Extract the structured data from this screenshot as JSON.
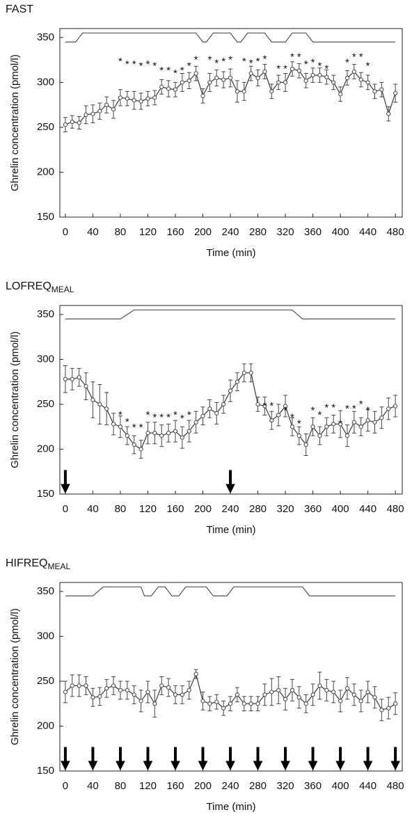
{
  "chart_data": [
    {
      "type": "line",
      "title": "FAST",
      "ylabel": "Ghrelin concentration (pmol/l)",
      "xlabel": "Time (min)",
      "xlim": [
        -8,
        490
      ],
      "ylim": [
        150,
        360
      ],
      "xticks": [
        0,
        40,
        80,
        120,
        160,
        200,
        240,
        280,
        320,
        360,
        400,
        440,
        480
      ],
      "yticks": [
        150,
        200,
        250,
        300,
        350
      ],
      "color": "#444",
      "x": [
        0,
        10,
        20,
        30,
        40,
        50,
        60,
        70,
        80,
        90,
        100,
        110,
        120,
        130,
        140,
        150,
        160,
        170,
        180,
        190,
        200,
        210,
        220,
        230,
        240,
        250,
        260,
        270,
        280,
        290,
        300,
        310,
        320,
        330,
        340,
        350,
        360,
        370,
        380,
        390,
        400,
        410,
        420,
        430,
        440,
        450,
        460,
        470,
        480
      ],
      "values": [
        253,
        256,
        255,
        264,
        265,
        268,
        275,
        270,
        283,
        282,
        280,
        279,
        282,
        283,
        295,
        293,
        292,
        300,
        302,
        310,
        285,
        300,
        305,
        303,
        305,
        290,
        290,
        310,
        305,
        312,
        290,
        300,
        300,
        315,
        313,
        302,
        308,
        308,
        306,
        300,
        287,
        305,
        312,
        303,
        300,
        290,
        292,
        265,
        288
      ],
      "errors": [
        8,
        7,
        7,
        10,
        10,
        9,
        9,
        10,
        9,
        8,
        10,
        9,
        8,
        8,
        8,
        9,
        8,
        10,
        9,
        8,
        8,
        10,
        9,
        9,
        10,
        12,
        10,
        8,
        9,
        8,
        8,
        8,
        10,
        8,
        8,
        8,
        8,
        8,
        8,
        8,
        8,
        8,
        8,
        8,
        8,
        8,
        8,
        8,
        10
      ],
      "trace": {
        "x": [
          0,
          15,
          25,
          190,
          200,
          205,
          215,
          240,
          250,
          255,
          265,
          290,
          300,
          320,
          330,
          350,
          360,
          480
        ],
        "y": [
          345,
          345,
          355,
          355,
          345,
          345,
          355,
          355,
          345,
          345,
          355,
          355,
          345,
          345,
          355,
          355,
          345,
          345
        ]
      },
      "significance": {
        "marker": "*",
        "x": [
          80,
          90,
          100,
          110,
          120,
          130,
          140,
          150,
          160,
          170,
          180,
          190,
          210,
          220,
          230,
          240,
          260,
          270,
          280,
          290,
          310,
          320,
          330,
          340,
          350,
          360,
          370,
          380,
          410,
          420,
          430,
          440
        ],
        "y": [
          325,
          322,
          322,
          320,
          322,
          320,
          315,
          315,
          312,
          315,
          320,
          327,
          327,
          323,
          325,
          327,
          325,
          323,
          325,
          328,
          317,
          317,
          330,
          330,
          322,
          324,
          320,
          317,
          324,
          330,
          330,
          320
        ]
      }
    },
    {
      "type": "line",
      "title": "LOFREQ",
      "title_sub": "MEAL",
      "ylabel": "Ghrelin concentration (pmol/l)",
      "xlabel": "Time (min)",
      "xlim": [
        -8,
        490
      ],
      "ylim": [
        150,
        360
      ],
      "xticks": [
        0,
        40,
        80,
        120,
        160,
        200,
        240,
        280,
        320,
        360,
        400,
        440,
        480
      ],
      "yticks": [
        150,
        200,
        250,
        300,
        350
      ],
      "color": "#444",
      "x": [
        0,
        10,
        20,
        30,
        40,
        50,
        60,
        70,
        80,
        90,
        100,
        110,
        120,
        130,
        140,
        150,
        160,
        170,
        180,
        190,
        200,
        210,
        220,
        230,
        240,
        250,
        260,
        270,
        280,
        290,
        300,
        310,
        320,
        330,
        340,
        350,
        360,
        370,
        380,
        390,
        400,
        410,
        420,
        430,
        440,
        450,
        460,
        470,
        480
      ],
      "values": [
        278,
        278,
        280,
        270,
        255,
        250,
        245,
        228,
        225,
        215,
        205,
        200,
        218,
        218,
        215,
        218,
        220,
        213,
        220,
        230,
        237,
        245,
        240,
        250,
        265,
        275,
        285,
        285,
        250,
        248,
        232,
        238,
        248,
        225,
        215,
        205,
        225,
        215,
        225,
        228,
        228,
        215,
        230,
        225,
        232,
        230,
        235,
        245,
        248
      ],
      "errors": [
        15,
        12,
        10,
        15,
        20,
        22,
        18,
        12,
        12,
        10,
        10,
        10,
        12,
        12,
        12,
        10,
        12,
        12,
        12,
        12,
        10,
        10,
        12,
        10,
        12,
        10,
        10,
        10,
        8,
        10,
        10,
        12,
        12,
        10,
        10,
        12,
        10,
        10,
        10,
        10,
        15,
        12,
        12,
        10,
        12,
        12,
        12,
        12,
        12
      ],
      "trace": {
        "x": [
          0,
          80,
          100,
          330,
          345,
          480
        ],
        "y": [
          345,
          345,
          355,
          355,
          345,
          345
        ]
      },
      "significance": {
        "marker": "*",
        "x": [
          80,
          90,
          100,
          110,
          120,
          130,
          140,
          150,
          160,
          170,
          180,
          290,
          300,
          320,
          330,
          340,
          360,
          370,
          380,
          390,
          400,
          410,
          420,
          430,
          440
        ],
        "y": [
          240,
          232,
          226,
          226,
          240,
          237,
          237,
          237,
          240,
          236,
          240,
          250,
          250,
          245,
          237,
          230,
          245,
          240,
          248,
          248,
          230,
          247,
          247,
          252,
          245
        ]
      },
      "meals": [
        0,
        240
      ]
    },
    {
      "type": "line",
      "title": "HIFREQ",
      "title_sub": "MEAL",
      "ylabel": "Ghrelin concentration (pmol/l)",
      "xlabel": "Time (min)",
      "xlim": [
        -8,
        490
      ],
      "ylim": [
        150,
        360
      ],
      "xticks": [
        0,
        40,
        80,
        120,
        160,
        200,
        240,
        280,
        320,
        360,
        400,
        440,
        480
      ],
      "yticks": [
        150,
        200,
        250,
        300,
        350
      ],
      "color": "#444",
      "x": [
        0,
        10,
        20,
        30,
        40,
        50,
        60,
        70,
        80,
        90,
        100,
        110,
        120,
        130,
        140,
        150,
        160,
        170,
        180,
        190,
        200,
        210,
        220,
        230,
        240,
        250,
        260,
        270,
        280,
        290,
        300,
        310,
        320,
        330,
        340,
        350,
        360,
        370,
        380,
        390,
        400,
        410,
        420,
        430,
        440,
        450,
        460,
        470,
        480
      ],
      "values": [
        238,
        245,
        245,
        245,
        232,
        233,
        242,
        245,
        240,
        240,
        235,
        228,
        238,
        225,
        245,
        243,
        235,
        235,
        240,
        258,
        228,
        225,
        227,
        220,
        225,
        235,
        225,
        225,
        225,
        235,
        238,
        240,
        230,
        240,
        232,
        225,
        235,
        245,
        240,
        238,
        228,
        242,
        235,
        228,
        238,
        232,
        218,
        220,
        225
      ],
      "errors": [
        12,
        12,
        12,
        10,
        10,
        10,
        10,
        10,
        10,
        10,
        10,
        12,
        12,
        15,
        10,
        10,
        10,
        10,
        10,
        5,
        10,
        8,
        8,
        8,
        8,
        8,
        8,
        8,
        8,
        12,
        15,
        15,
        12,
        12,
        12,
        10,
        12,
        15,
        12,
        12,
        12,
        12,
        12,
        12,
        12,
        12,
        12,
        12,
        12
      ],
      "trace": {
        "x": [
          0,
          40,
          55,
          110,
          115,
          125,
          135,
          145,
          155,
          165,
          175,
          205,
          215,
          235,
          245,
          345,
          355,
          480
        ],
        "y": [
          345,
          345,
          355,
          355,
          345,
          345,
          355,
          355,
          345,
          345,
          355,
          355,
          345,
          345,
          355,
          355,
          345,
          345
        ]
      },
      "meals": [
        0,
        40,
        80,
        120,
        160,
        200,
        240,
        280,
        320,
        360,
        400,
        440,
        480
      ]
    }
  ]
}
